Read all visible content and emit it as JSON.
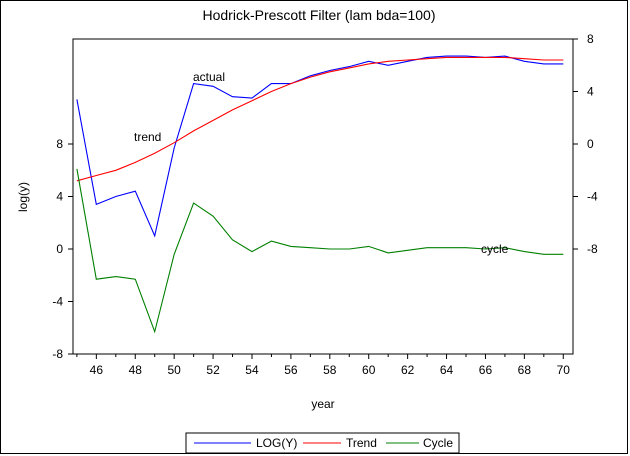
{
  "chart_data": {
    "type": "line",
    "title": "Hodrick-Prescott Filter (lam bda=100)",
    "xlabel": "year",
    "ylabel": "log(y)",
    "x": [
      45,
      46,
      47,
      48,
      49,
      50,
      51,
      52,
      53,
      54,
      55,
      56,
      57,
      58,
      59,
      60,
      61,
      62,
      63,
      64,
      65,
      66,
      67,
      68,
      69,
      70
    ],
    "xticks": [
      46,
      48,
      50,
      52,
      54,
      56,
      58,
      60,
      62,
      64,
      66,
      68,
      70
    ],
    "xlim": [
      44.8,
      70.5
    ],
    "left_axis": {
      "ticks": [
        -8,
        -4,
        0,
        4,
        8
      ],
      "ylim": [
        -8,
        16
      ]
    },
    "right_axis": {
      "ticks": [
        -8,
        -4,
        0,
        4,
        8
      ],
      "ylim": [
        -16,
        8
      ]
    },
    "series": [
      {
        "name": "LOG(Y)",
        "axis": "right",
        "color": "#0000ff",
        "values": [
          3.4,
          -4.6,
          -4.0,
          -3.6,
          -7.0,
          -0.3,
          4.6,
          4.4,
          3.6,
          3.5,
          4.6,
          4.6,
          5.2,
          5.6,
          5.9,
          6.3,
          6.0,
          6.3,
          6.6,
          6.7,
          6.7,
          6.6,
          6.7,
          6.3,
          6.1,
          6.1
        ]
      },
      {
        "name": "Trend",
        "axis": "right",
        "color": "#ff0000",
        "values": [
          -2.8,
          -2.4,
          -2.0,
          -1.4,
          -0.7,
          0.1,
          1.0,
          1.8,
          2.6,
          3.3,
          4.0,
          4.6,
          5.1,
          5.5,
          5.8,
          6.1,
          6.3,
          6.4,
          6.5,
          6.6,
          6.6,
          6.6,
          6.6,
          6.5,
          6.4,
          6.4
        ]
      },
      {
        "name": "Cycle",
        "axis": "left",
        "color": "#008000",
        "values": [
          6.1,
          -2.3,
          -2.1,
          -2.3,
          -6.3,
          -0.4,
          3.5,
          2.5,
          0.7,
          -0.2,
          0.6,
          0.2,
          0.1,
          0.0,
          0.0,
          0.2,
          -0.3,
          -0.1,
          0.1,
          0.1,
          0.1,
          0.0,
          0.1,
          -0.2,
          -0.4,
          -0.4
        ]
      }
    ],
    "annotations": [
      "actual",
      "trend",
      "cycle"
    ],
    "legend": {
      "position": "bottom-center",
      "entries": [
        "LOG(Y)",
        "Trend",
        "Cycle"
      ]
    },
    "grid": false
  }
}
